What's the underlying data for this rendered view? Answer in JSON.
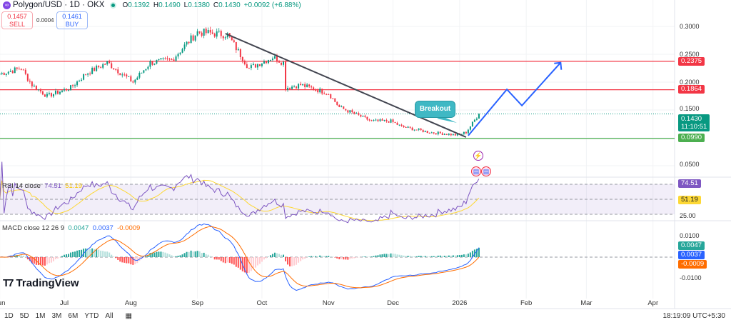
{
  "header": {
    "symbol_icon": "polygon-logo",
    "title": "Polygon/USD · 1D · OKX",
    "market_status": "open",
    "open_label": "O",
    "open": "0.1392",
    "high_label": "H",
    "high": "0.1490",
    "low_label": "L",
    "low": "0.1380",
    "close_label": "C",
    "close": "0.1430",
    "change": "+0.0092 (+6.88%)"
  },
  "trade": {
    "sell_price": "0.1457",
    "sell_label": "SELL",
    "spread": "0.0004",
    "buy_price": "0.1461",
    "buy_label": "BUY"
  },
  "price_axis": {
    "ticks": [
      "0.3000",
      "0.2500",
      "0.2000",
      "0.1500",
      "0.0500"
    ]
  },
  "levels": [
    {
      "value": 0.2375,
      "label": "0.2375",
      "color": "#f23645"
    },
    {
      "value": 0.1864,
      "label": "0.1864",
      "color": "#f23645"
    },
    {
      "value": 0.099,
      "label": "0.0990",
      "color": "#4caf50"
    }
  ],
  "current": {
    "price": 0.143,
    "label": "0.1430",
    "countdown": "11:10:51",
    "color": "#089981"
  },
  "annotation": {
    "text": "Breakout"
  },
  "trendline": [
    [
      "2025-09-14",
      0.2872
    ],
    [
      "2026-01-04",
      0.1013
    ]
  ],
  "projection": [
    [
      "2026-01-05",
      0.104
    ],
    [
      "2026-01-23",
      0.187
    ],
    [
      "2026-01-30",
      0.158
    ],
    [
      "2026-02-17",
      0.235
    ]
  ],
  "price_path": [
    [
      "2025-06-01",
      0.215
    ],
    [
      "2025-06-11",
      0.225
    ],
    [
      "2025-06-16",
      0.195
    ],
    [
      "2025-06-23",
      0.175
    ],
    [
      "2025-07-04",
      0.19
    ],
    [
      "2025-07-11",
      0.215
    ],
    [
      "2025-07-21",
      0.235
    ],
    [
      "2025-08-02",
      0.2
    ],
    [
      "2025-08-10",
      0.235
    ],
    [
      "2025-08-20",
      0.24
    ],
    [
      "2025-09-01",
      0.29
    ],
    [
      "2025-09-15",
      0.285
    ],
    [
      "2025-09-25",
      0.225
    ],
    [
      "2025-10-06",
      0.245
    ],
    [
      "2025-10-11",
      0.235
    ],
    [
      "2025-10-12",
      0.19
    ],
    [
      "2025-10-19",
      0.195
    ],
    [
      "2025-11-01",
      0.18
    ],
    [
      "2025-11-06",
      0.155
    ],
    [
      "2025-11-21",
      0.13
    ],
    [
      "2025-11-30",
      0.13
    ],
    [
      "2025-12-05",
      0.12
    ],
    [
      "2025-12-18",
      0.11
    ],
    [
      "2025-12-31",
      0.105
    ],
    [
      "2026-01-04",
      0.11
    ],
    [
      "2026-01-10",
      0.143
    ]
  ],
  "rsi": {
    "legend": "RSI 14 close",
    "value": "74.51",
    "ma": "51.19",
    "axis": "25.00",
    "line_color": "#7e57c2",
    "ma_color": "#fdd835"
  },
  "macd": {
    "legend": "MACD close 12 26 9",
    "hist": "0.0047",
    "macd": "0.0037",
    "signal": "-0.0009",
    "ticks": [
      "0.0100",
      "-0.0100"
    ],
    "hist_color": "#26a69a",
    "macd_color": "#2962ff",
    "signal_color": "#ff6d00"
  },
  "time_axis": [
    [
      "Jun",
      "2025-06-01"
    ],
    [
      "Jul",
      "2025-07-01"
    ],
    [
      "Aug",
      "2025-08-01"
    ],
    [
      "Sep",
      "2025-09-01"
    ],
    [
      "Oct",
      "2025-10-01"
    ],
    [
      "Nov",
      "2025-11-01"
    ],
    [
      "Dec",
      "2025-12-01"
    ],
    [
      "2026",
      "2026-01-01"
    ],
    [
      "Feb",
      "2026-02-01"
    ],
    [
      "Mar",
      "2026-03-01"
    ],
    [
      "Apr",
      "2026-04-01"
    ]
  ],
  "toolbar": {
    "ranges": [
      "1D",
      "5D",
      "1M",
      "3M",
      "6M",
      "YTD",
      "All"
    ],
    "calendar_icon": "calendar-icon",
    "clock": "18:19:09 UTC+5:30"
  },
  "logo": "TradingView"
}
